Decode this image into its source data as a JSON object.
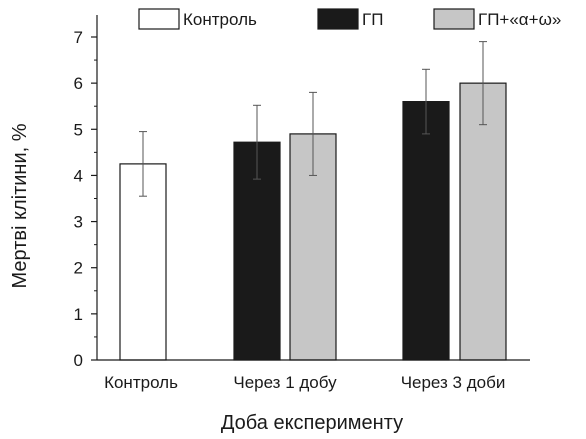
{
  "chart_data": {
    "type": "bar",
    "xlabel": "Доба експерименту",
    "ylabel": "Мертві клітини, %",
    "ylim": [
      0,
      7
    ],
    "yticks": [
      0,
      1,
      2,
      3,
      4,
      5,
      6,
      7
    ],
    "grid": false,
    "legend_position": "top",
    "categories": [
      "Контроль",
      "Через 1 добу",
      "Через 3 доби"
    ],
    "series": [
      {
        "name": "Контроль",
        "color": "#ffffff",
        "values": [
          4.25,
          null,
          null
        ],
        "errors": [
          0.7,
          null,
          null
        ]
      },
      {
        "name": "ГП",
        "color": "#1a1a1a",
        "values": [
          null,
          4.72,
          5.6
        ],
        "errors": [
          null,
          0.8,
          0.7
        ]
      },
      {
        "name": "ГП+«α+ω»",
        "color": "#c6c6c6",
        "values": [
          null,
          4.9,
          6.0
        ],
        "errors": [
          null,
          0.9,
          0.9
        ]
      }
    ]
  }
}
